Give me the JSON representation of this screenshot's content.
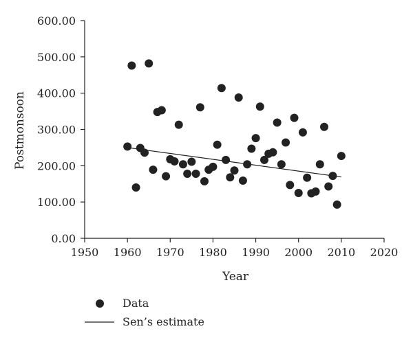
{
  "chart_data": {
    "type": "scatter",
    "xlabel": "Year",
    "ylabel": "Postmonsoon",
    "xlim": [
      1950,
      2020
    ],
    "ylim": [
      0,
      600
    ],
    "xticks": [
      1950,
      1960,
      1970,
      1980,
      1990,
      2000,
      2010,
      2020
    ],
    "yticks": [
      0,
      100,
      200,
      300,
      400,
      500,
      600
    ],
    "ytick_labels": [
      "0.00",
      "100.00",
      "200.00",
      "300.00",
      "400.00",
      "500.00",
      "600.00"
    ],
    "grid": false,
    "legend_position": "bottom-left",
    "series": [
      {
        "name": "Data",
        "kind": "scatter",
        "points": [
          [
            1960,
            253
          ],
          [
            1961,
            476
          ],
          [
            1962,
            140
          ],
          [
            1963,
            249
          ],
          [
            1964,
            236
          ],
          [
            1965,
            482
          ],
          [
            1966,
            189
          ],
          [
            1967,
            348
          ],
          [
            1968,
            353
          ],
          [
            1969,
            171
          ],
          [
            1970,
            218
          ],
          [
            1971,
            212
          ],
          [
            1972,
            313
          ],
          [
            1973,
            204
          ],
          [
            1974,
            178
          ],
          [
            1975,
            211
          ],
          [
            1976,
            178
          ],
          [
            1977,
            361
          ],
          [
            1978,
            157
          ],
          [
            1979,
            189
          ],
          [
            1980,
            197
          ],
          [
            1981,
            258
          ],
          [
            1982,
            414
          ],
          [
            1983,
            216
          ],
          [
            1984,
            168
          ],
          [
            1985,
            187
          ],
          [
            1986,
            388
          ],
          [
            1987,
            159
          ],
          [
            1988,
            204
          ],
          [
            1989,
            247
          ],
          [
            1990,
            276
          ],
          [
            1991,
            363
          ],
          [
            1992,
            216
          ],
          [
            1993,
            233
          ],
          [
            1994,
            237
          ],
          [
            1995,
            319
          ],
          [
            1996,
            204
          ],
          [
            1997,
            264
          ],
          [
            1998,
            147
          ],
          [
            1999,
            332
          ],
          [
            2000,
            125
          ],
          [
            2001,
            292
          ],
          [
            2002,
            167
          ],
          [
            2003,
            124
          ],
          [
            2004,
            129
          ],
          [
            2005,
            204
          ],
          [
            2006,
            307
          ],
          [
            2007,
            143
          ],
          [
            2008,
            172
          ],
          [
            2009,
            93
          ],
          [
            2010,
            227
          ]
        ]
      },
      {
        "name": "Sen's estimate",
        "kind": "line",
        "points": [
          [
            1960,
            250
          ],
          [
            2010,
            169
          ]
        ]
      }
    ],
    "legend": [
      "Data",
      "Sen’s estimate"
    ]
  }
}
